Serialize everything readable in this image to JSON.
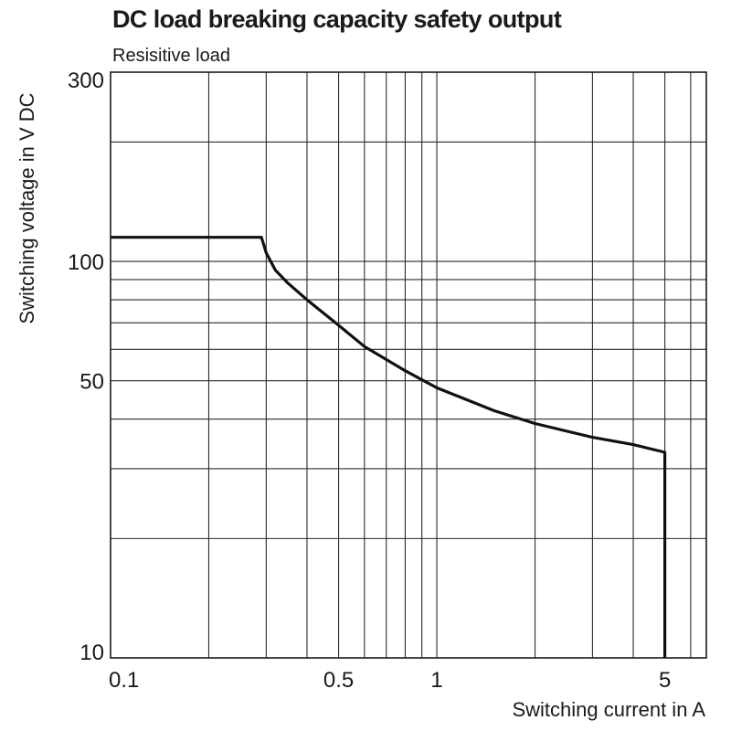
{
  "chart_data": {
    "type": "line",
    "title": "DC load breaking capacity safety output",
    "subtitle": "Resisitive load",
    "xlabel": "Switching current in A",
    "ylabel": "Switching voltage in V DC",
    "x_scale": "log",
    "y_scale": "log",
    "xlim": [
      0.1,
      6.7
    ],
    "ylim": [
      10,
      300
    ],
    "x_ticks": [
      0.1,
      0.5,
      1,
      5
    ],
    "x_tick_labels": [
      "0.1",
      "0.5",
      "1",
      "5"
    ],
    "y_ticks": [
      10,
      50,
      100,
      300
    ],
    "y_tick_labels": [
      "10",
      "50",
      "100",
      "300"
    ],
    "grid": true,
    "x_gridlines": [
      0.2,
      0.3,
      0.4,
      0.5,
      0.6,
      0.7,
      0.8,
      0.9,
      1,
      2,
      3,
      4,
      5,
      6
    ],
    "y_gridlines": [
      20,
      30,
      40,
      50,
      60,
      70,
      80,
      90,
      100,
      200,
      300
    ],
    "line_color": "#111111",
    "series": [
      {
        "x": [
          0.1,
          0.29,
          0.3,
          0.32,
          0.35,
          0.4,
          0.5,
          0.6,
          0.8,
          1.0,
          1.5,
          2.0,
          3.0,
          4.0,
          5.0,
          5.0
        ],
        "y": [
          115,
          115,
          105,
          95,
          88,
          80,
          69,
          61,
          53,
          48,
          42,
          39,
          36,
          34.5,
          33,
          10
        ]
      }
    ]
  }
}
